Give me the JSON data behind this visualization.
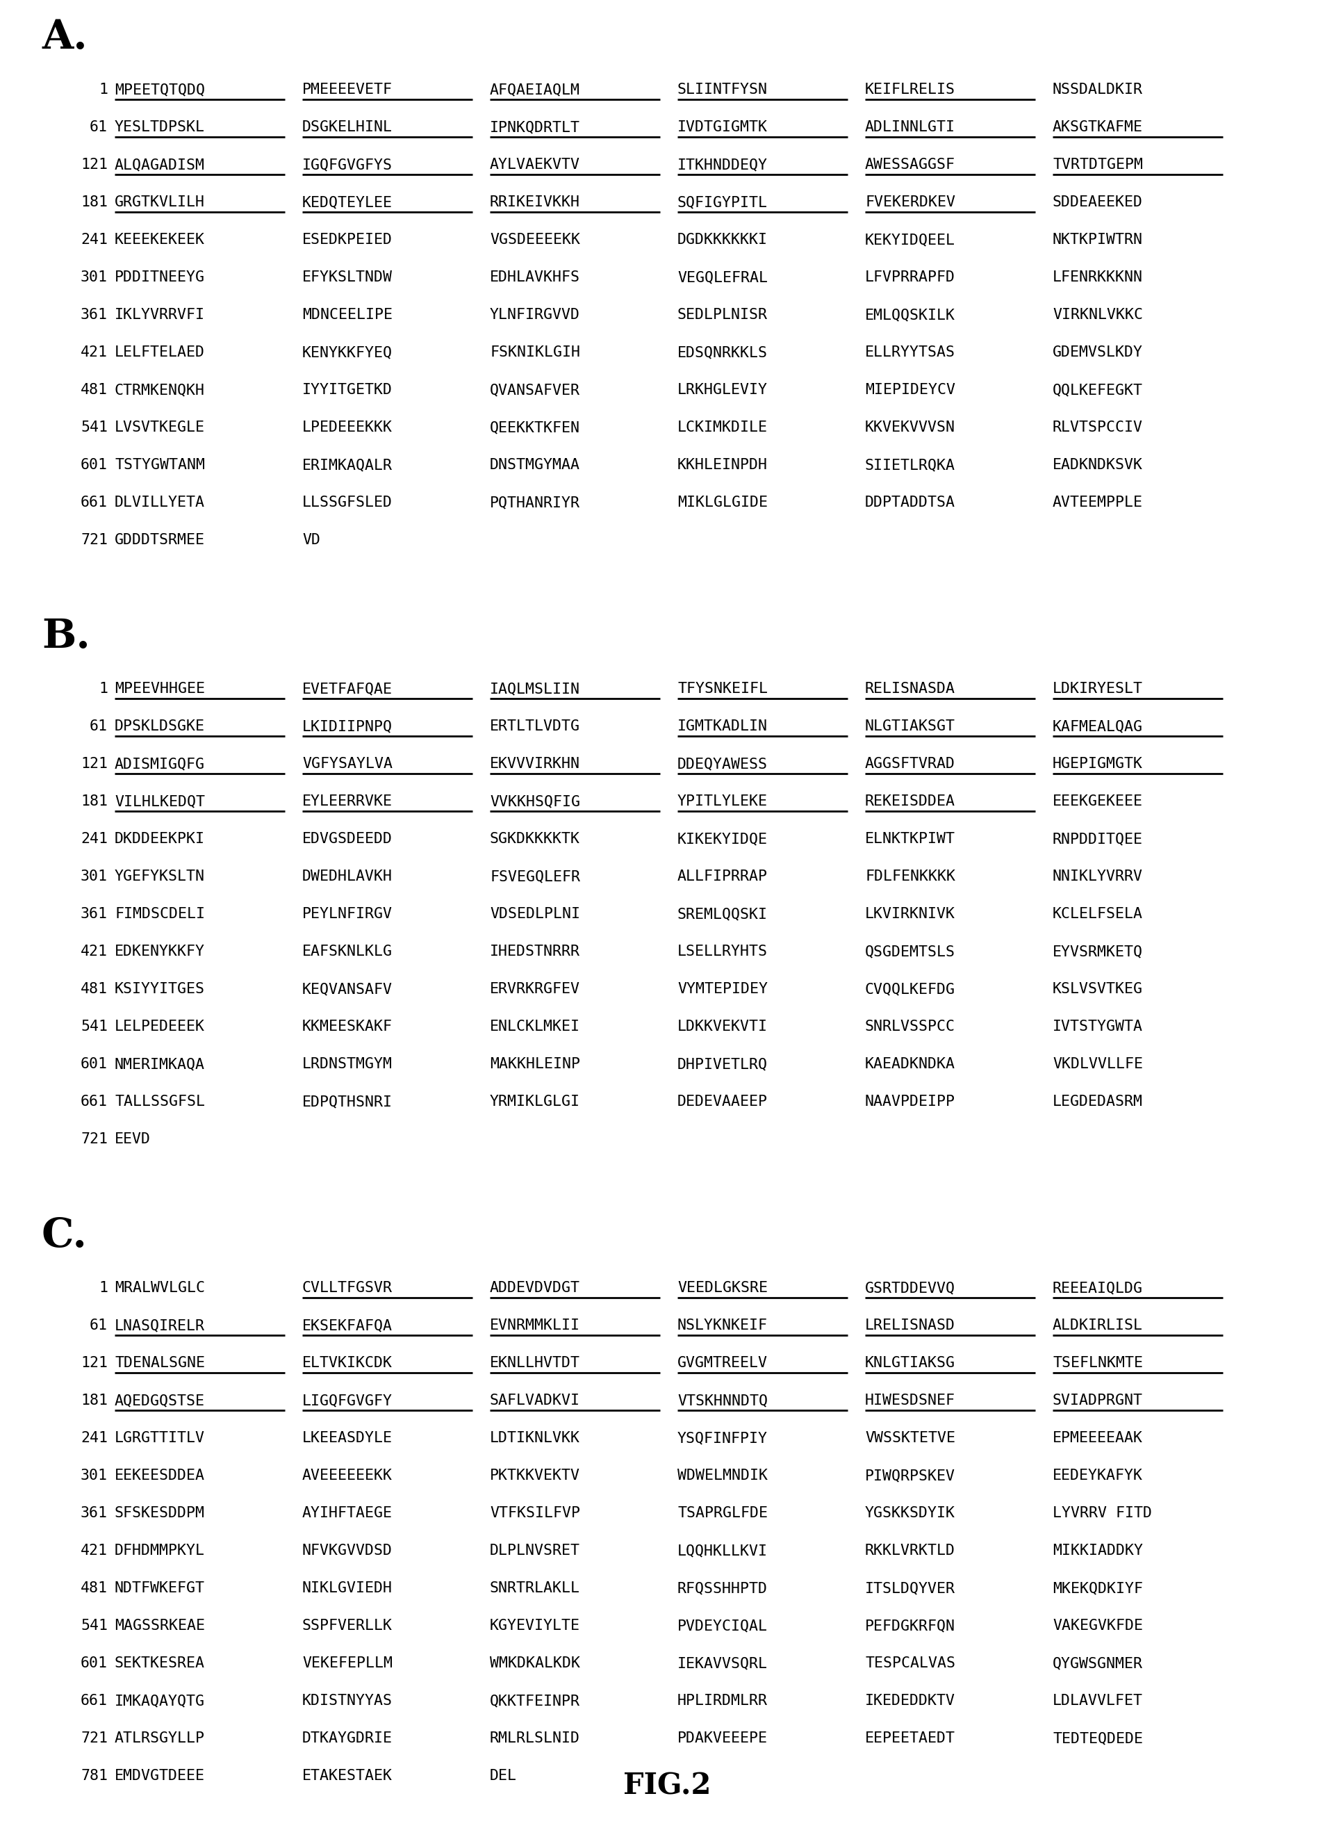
{
  "background_color": "#ffffff",
  "fig_width": 19.2,
  "fig_height": 26.3,
  "sections": [
    {
      "label": "A.",
      "rows": [
        {
          "num": "1",
          "words": [
            "MPEETQTQDQ",
            "PMEEEEVETF",
            "AFQAEIAQLM",
            "SLIINTFYSN",
            "KEIFLRELIS",
            "NSSDALDKIR"
          ],
          "underline": [
            1,
            1,
            1,
            1,
            1,
            0
          ]
        },
        {
          "num": "61",
          "words": [
            "YESLTDPSKL",
            "DSGKELHINL",
            "IPNKQDRTLT",
            "IVDTGIGMTK",
            "ADLINNLGTI",
            "AKSGTKAFME"
          ],
          "underline": [
            1,
            1,
            1,
            1,
            1,
            1
          ]
        },
        {
          "num": "121",
          "words": [
            "ALQAGADISM",
            "IGQFGVGFYS",
            "AYLVAEKVTV",
            "ITKHNDDEQY",
            "AWESSAGGSF",
            "TVRTDTGEPM"
          ],
          "underline": [
            1,
            1,
            1,
            1,
            1,
            1
          ]
        },
        {
          "num": "181",
          "words": [
            "GRGTKVLILH",
            "KEDQTEYLEE",
            "RRIKEIVKKH",
            "SQFIGYPITL",
            "FVEKERDKEV",
            "SDDEAEEKED"
          ],
          "underline": [
            1,
            1,
            1,
            1,
            1,
            0
          ]
        },
        {
          "num": "241",
          "words": [
            "KEEEKEKEEK",
            "ESEDKPEIED",
            "VGSDEEEEKK",
            "DGDKKKKKKI",
            "KEKYIDQEEL",
            "NKTKPIWTRN"
          ],
          "underline": [
            0,
            0,
            0,
            0,
            0,
            0
          ]
        },
        {
          "num": "301",
          "words": [
            "PDDITNEEYG",
            "EFYKSLTNDW",
            "EDHLAVKHFS",
            "VEGQLEFRAL",
            "LFVPRRAPFD",
            "LFENRKKKNN"
          ],
          "underline": [
            0,
            0,
            0,
            0,
            0,
            0
          ]
        },
        {
          "num": "361",
          "words": [
            "IKLYVRRVFI",
            "MDNCEELIPE",
            "YLNFIRGVVD",
            "SEDLPLNISR",
            "EMLQQSKILK",
            "VIRKNLVKKC"
          ],
          "underline": [
            0,
            0,
            0,
            0,
            0,
            0
          ]
        },
        {
          "num": "421",
          "words": [
            "LELFTELAED",
            "KENYKKFYEQ",
            "FSKNIKLGIH",
            "EDSQNRKKLS",
            "ELLRYYTSAS",
            "GDEMVSLKDY"
          ],
          "underline": [
            0,
            0,
            0,
            0,
            0,
            0
          ]
        },
        {
          "num": "481",
          "words": [
            "CTRMKENQKH",
            "IYYITGETKD",
            "QVANSAFVER",
            "LRKHGLEVIY",
            "MIEPIDEYCV",
            "QQLKEFEGKT"
          ],
          "underline": [
            0,
            0,
            0,
            0,
            0,
            0
          ]
        },
        {
          "num": "541",
          "words": [
            "LVSVTKEGLE",
            "LPEDEEEKKK",
            "QEEKKTKFEN",
            "LCKIMKDILE",
            "KKVEKVVVSN",
            "RLVTSPCCIV"
          ],
          "underline": [
            0,
            0,
            0,
            0,
            0,
            0
          ]
        },
        {
          "num": "601",
          "words": [
            "TSTYGWTANM",
            "ERIMKAQALR",
            "DNSTMGYMAA",
            "KKHLEINPDH",
            "SIIETLRQKA",
            "EADKNDKSVK"
          ],
          "underline": [
            0,
            0,
            0,
            0,
            0,
            0
          ]
        },
        {
          "num": "661",
          "words": [
            "DLVILLYETA",
            "LLSSGFSLED",
            "PQTHANRIYR",
            "MIKLGLGIDE",
            "DDPTADDTSA",
            "AVTEEMPPLE"
          ],
          "underline": [
            0,
            0,
            0,
            0,
            0,
            0
          ]
        },
        {
          "num": "721",
          "words": [
            "GDDDTSRMEE",
            "VD"
          ],
          "underline": [
            0,
            0
          ]
        }
      ]
    },
    {
      "label": "B.",
      "rows": [
        {
          "num": "1",
          "words": [
            "MPEEVHHGEE",
            "EVETFAFQAE",
            "IAQLMSLIIN",
            "TFYSNKEIFL",
            "RELISNASDA",
            "LDKIRYESLT"
          ],
          "underline": [
            1,
            1,
            1,
            1,
            1,
            1
          ]
        },
        {
          "num": "61",
          "words": [
            "DPSKLDSGKE",
            "LKIDIIPNPQ",
            "ERTLTLVDTG",
            "IGMTKADLIN",
            "NLGTIAKSGT",
            "KAFMEALQAG"
          ],
          "underline": [
            1,
            1,
            0,
            1,
            1,
            1
          ]
        },
        {
          "num": "121",
          "words": [
            "ADISMIGQFG",
            "VGFYSAYLVA",
            "EKVVVIRKHN",
            "DDEQYAWESS",
            "AGGSFTVRAD",
            "HGEPIGMGTK"
          ],
          "underline": [
            1,
            1,
            1,
            1,
            1,
            1
          ]
        },
        {
          "num": "181",
          "words": [
            "VILHLKEDQT",
            "EYLEERRVKE",
            "VVKKHSQFIG",
            "YPITLYLEKE",
            "REKEISDDEA",
            "EEEKGEKEEE"
          ],
          "underline": [
            1,
            1,
            1,
            1,
            1,
            0
          ]
        },
        {
          "num": "241",
          "words": [
            "DKDDEEKPKI",
            "EDVGSDEEDD",
            "SGKDKKKKTK",
            "KIKEKYIDQE",
            "ELNKTKPIWT",
            "RNPDDITQEE"
          ],
          "underline": [
            0,
            0,
            0,
            0,
            0,
            0
          ]
        },
        {
          "num": "301",
          "words": [
            "YGEFYKSLTN",
            "DWEDHLAVKH",
            "FSVEGQLEFR",
            "ALLFIPRRAP",
            "FDLFENKKKK",
            "NNIKLYVRRV"
          ],
          "underline": [
            0,
            0,
            0,
            0,
            0,
            0
          ]
        },
        {
          "num": "361",
          "words": [
            "FIMDSCDELI",
            "PEYLNFIRGV",
            "VDSEDLPLNI",
            "SREMLQQSKI",
            "LKVIRKNIVK",
            "KCLELFSELА"
          ],
          "underline": [
            0,
            0,
            0,
            0,
            0,
            0
          ]
        },
        {
          "num": "421",
          "words": [
            "EDKENYKKFY",
            "EAFSKNLKLG",
            "IHEDSTNRRR",
            "LSELLRYHTS",
            "QSGDEMTSLS",
            "EYVSRMKETQ"
          ],
          "underline": [
            0,
            0,
            0,
            0,
            0,
            0
          ]
        },
        {
          "num": "481",
          "words": [
            "KSIYYITGES",
            "KEQVANSAFV",
            "ERVRKRGFEV",
            "VYMTEPIDEY",
            "CVQQLKEFDG",
            "KSLVSVTKEG"
          ],
          "underline": [
            0,
            0,
            0,
            0,
            0,
            0
          ]
        },
        {
          "num": "541",
          "words": [
            "LELPEDEEEK",
            "KKMEESKAKF",
            "ENLCKLMKEI",
            "LDKKVEKVTI",
            "SNRLVSSPCC",
            "IVTSTYGWTA"
          ],
          "underline": [
            0,
            0,
            0,
            0,
            0,
            0
          ]
        },
        {
          "num": "601",
          "words": [
            "NMERIMKAQA",
            "LRDNSTMGYM",
            "MAKKHLEINP",
            "DHPIVETLRQ",
            "KAEADKNDKA",
            "VKDLVVLLFE"
          ],
          "underline": [
            0,
            0,
            0,
            0,
            0,
            0
          ]
        },
        {
          "num": "661",
          "words": [
            "TALLSSGFSL",
            "EDPQTHSNRI",
            "YRMIKLGLGI",
            "DEDEVAAEEP",
            "NAAVPDEIPP",
            "LEGDEDASRM"
          ],
          "underline": [
            0,
            0,
            0,
            0,
            0,
            0
          ]
        },
        {
          "num": "721",
          "words": [
            "EEVD"
          ],
          "underline": [
            0
          ]
        }
      ]
    },
    {
      "label": "C.",
      "rows": [
        {
          "num": "1",
          "words": [
            "MRALWVLGLC",
            "CVLLTFGSVR",
            "ADDEVDVDGT",
            "VEEDLGKSRE",
            "GSRTDDEVVQ",
            "REEEAIQLDG"
          ],
          "underline": [
            0,
            1,
            1,
            1,
            1,
            1
          ]
        },
        {
          "num": "61",
          "words": [
            "LNASQIRELR",
            "EKSEKFAFQA",
            "EVNRMMKLII",
            "NSLYKNKEIF",
            "LRELISNASD",
            "ALDKIRLISL"
          ],
          "underline": [
            1,
            1,
            1,
            1,
            1,
            1
          ]
        },
        {
          "num": "121",
          "words": [
            "TDENALSGNE",
            "ELTVKIKCDK",
            "EKNLLHVTDT",
            "GVGMTREELV",
            "KNLGTIAKSG",
            "TSEFLNKMTE"
          ],
          "underline": [
            1,
            1,
            1,
            1,
            1,
            1
          ]
        },
        {
          "num": "181",
          "words": [
            "AQEDGQSTSE",
            "LIGQFGVGFY",
            "SAFLVADKVI",
            "VTSKHNNDTQ",
            "HIWESDSNEF",
            "SVIADPRGNT"
          ],
          "underline": [
            1,
            1,
            1,
            1,
            1,
            1
          ]
        },
        {
          "num": "241",
          "words": [
            "LGRGTTITLV",
            "LKEEASDYLE",
            "LDTIKNLVKK",
            "YSQFINFPIY",
            "VWSSKTETVE",
            "EPMEEEEAAK"
          ],
          "underline": [
            0,
            0,
            0,
            0,
            0,
            0
          ]
        },
        {
          "num": "301",
          "words": [
            "EEKEESDDEA",
            "AVEEEEEEКK",
            "PKTKKVEКТV",
            "WDWELMNDIK",
            "PIWQRPSKEV",
            "EEDEYKAFYK"
          ],
          "underline": [
            0,
            0,
            0,
            0,
            0,
            0
          ]
        },
        {
          "num": "361",
          "words": [
            "SFSKESDDPM",
            "AYIHFTAEGE",
            "VTFKSILFVP",
            "TSAPRGLFDE",
            "YGSKKSDYIK",
            "LYVRRV FITD"
          ],
          "underline": [
            0,
            0,
            0,
            0,
            0,
            0
          ]
        },
        {
          "num": "421",
          "words": [
            "DFHDMMPKYL",
            "NFVKGVVDSD",
            "DLPLNVSRET",
            "LQQHKLLKVI",
            "RKKLVRKTLD",
            "MIKKIADDKY"
          ],
          "underline": [
            0,
            0,
            0,
            0,
            0,
            0
          ]
        },
        {
          "num": "481",
          "words": [
            "NDTFWKEFGT",
            "NIKLGVIEDH",
            "SNRTRLAKLL",
            "RFQSSHHPTD",
            "ITSLDQYVER",
            "MKEKQDKIYF"
          ],
          "underline": [
            0,
            0,
            0,
            0,
            0,
            0
          ]
        },
        {
          "num": "541",
          "words": [
            "MAGSSRKEAE",
            "SSPFVERLLK",
            "KGYEVIYLTE",
            "PVDEYCIQAL",
            "PEFDGKRFQN",
            "VAKEGVKFDE"
          ],
          "underline": [
            0,
            0,
            0,
            0,
            0,
            0
          ]
        },
        {
          "num": "601",
          "words": [
            "SEKTKESREA",
            "VEKEFEPLLM",
            "WMKDKALKDK",
            "IEKAVVSQRL",
            "TESPCALVAS",
            "QYGWSGNMER"
          ],
          "underline": [
            0,
            0,
            0,
            0,
            0,
            0
          ]
        },
        {
          "num": "661",
          "words": [
            "IMKAQAYQTG",
            "KDISTNYYAS",
            "QKKTFEINPR",
            "HPLIRDMLRR",
            "IKEDEDDKTV",
            "LDLAVVLFET"
          ],
          "underline": [
            0,
            0,
            0,
            0,
            0,
            0
          ]
        },
        {
          "num": "721",
          "words": [
            "ATLRSGYLLP",
            "DTKAYGDRIE",
            "RMLRLSLNID",
            "PDAKVEEEPE",
            "EEPEETAEDT",
            "TEDTEQDEDE"
          ],
          "underline": [
            0,
            0,
            0,
            0,
            0,
            0
          ]
        },
        {
          "num": "781",
          "words": [
            "EMDVGTDEEE",
            "ETAKESTAEK",
            "DEL"
          ],
          "underline": [
            0,
            0,
            0
          ]
        }
      ]
    }
  ],
  "fig_label": "FIG.2",
  "label_fontsize": 42,
  "seq_fontsize": 15.5,
  "num_fontsize": 15.5
}
